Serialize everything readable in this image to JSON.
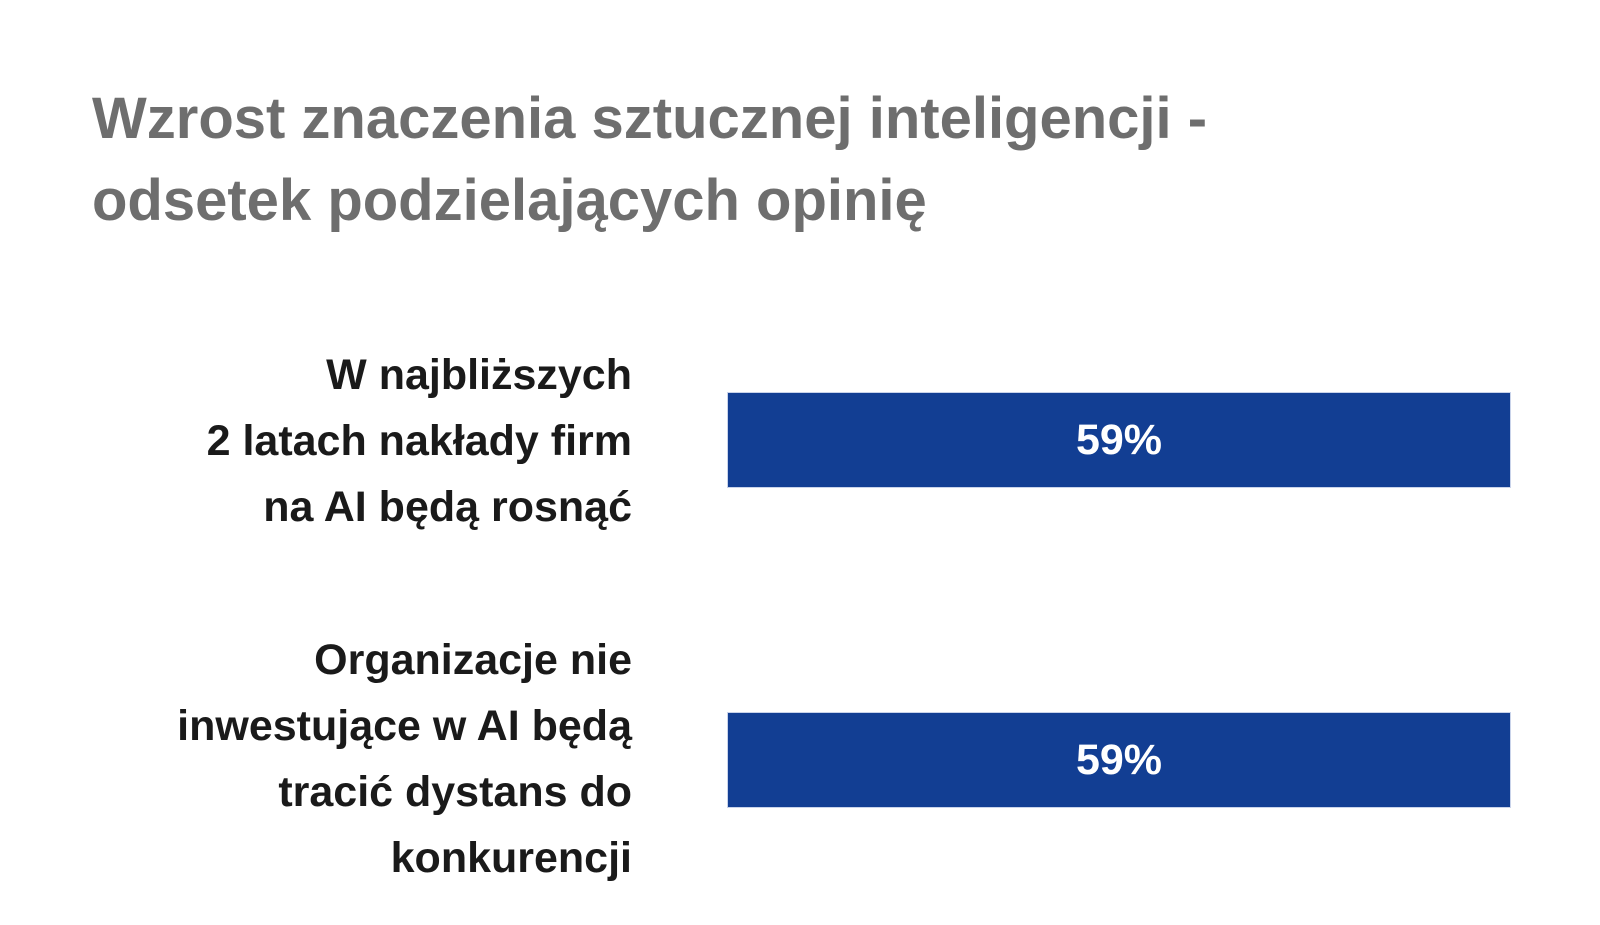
{
  "chart_data": {
    "type": "bar",
    "orientation": "horizontal",
    "title": [
      "Wzrost znaczenia sztucznej inteligencji -",
      "odsetek podzielających opinię"
    ],
    "categories": [
      [
        "W najbliższych",
        "2 latach nakłady firm",
        "na AI będą rosnąć"
      ],
      [
        "Organizacje nie",
        "inwestujące w AI będą",
        "tracić dystans do",
        "konkurencji"
      ]
    ],
    "values": [
      59,
      59
    ],
    "value_labels": [
      "59%",
      "59%"
    ],
    "unit": "%",
    "xlim": [
      0,
      59
    ],
    "grid": false,
    "legend": "none",
    "colors": {
      "bar": "#123e93",
      "bar_text": "#ffffff",
      "title": "#6e6e6e",
      "labels": "#1a1a1a"
    }
  }
}
